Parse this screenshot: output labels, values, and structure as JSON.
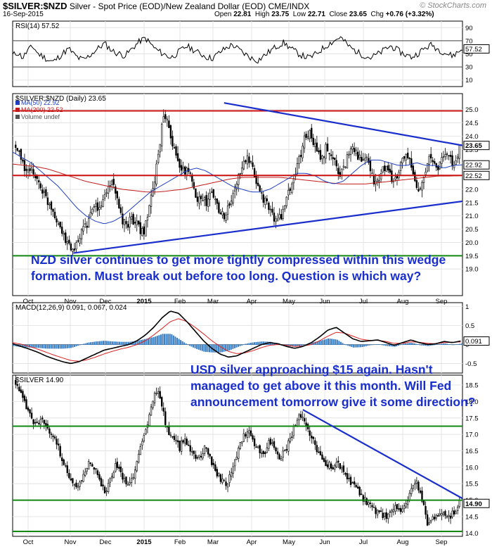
{
  "header": {
    "symbol": "$SILVER:$NZD",
    "description": "Silver - Spot Price (EOD)/New Zealand Dollar (EOD)",
    "exchange": "CME/INDX",
    "date": "16-Sep-2015",
    "open_label": "Open",
    "open": "22.81",
    "high_label": "High",
    "high": "23.75",
    "low_label": "Low",
    "low": "22.71",
    "close_label": "Close",
    "close": "23.65",
    "chg_label": "Chg",
    "chg": "+0.76 (+3.32%)",
    "brand": "© StockCharts.com"
  },
  "annotations": {
    "nzd_note": "NZD silver continues to get more tightly compressed within this wedge formation. Must break out before too long. Question is which way?",
    "usd_note": "USD silver approaching $15 again. Hasn't managed to get above it this month. Will Fed announcement tomorrow give it some direction?"
  },
  "colors": {
    "accent_blue": "#1a2ecc",
    "trend_red": "#cc1111",
    "support_green": "#118811",
    "ma50": "#1f3fbf",
    "ma200": "#c21b1b",
    "macd_signal": "#d22",
    "hist": "#3a7fc4"
  },
  "chart_data": [
    {
      "type": "line",
      "panel": "RSI",
      "title": "RSI(14) 57.52",
      "yticks": [
        10,
        30,
        50,
        70,
        90
      ],
      "ylim": [
        0,
        100
      ],
      "last_value": "57.52",
      "values": [
        48,
        52,
        44,
        56,
        61,
        50,
        46,
        40,
        38,
        45,
        52,
        58,
        49,
        43,
        41,
        47,
        54,
        60,
        66,
        58,
        52,
        50,
        47,
        55,
        63,
        70,
        74,
        65,
        57,
        52,
        48,
        44,
        50,
        56,
        62,
        58,
        53,
        49,
        45,
        43,
        49,
        55,
        60,
        64,
        58,
        52,
        47,
        42,
        40,
        46,
        52,
        58,
        63,
        67,
        61,
        55,
        50,
        46,
        44,
        48,
        54,
        60,
        66,
        70,
        76,
        68,
        60,
        55,
        50,
        47,
        44,
        48,
        52,
        58,
        62,
        57,
        52,
        48,
        45,
        49,
        55,
        60,
        64,
        58,
        54,
        50,
        47,
        52,
        57.52
      ]
    },
    {
      "type": "candlestick",
      "panel": "$SILVER:$NZD",
      "title": "$SILVER:$NZD (Daily) 23.65",
      "legend": [
        "MA(50) 22.92",
        "MA(200) 22.52",
        "Volume undef"
      ],
      "yticks": [
        19.0,
        19.5,
        20.0,
        20.5,
        21.0,
        21.5,
        22.0,
        22.5,
        23.0,
        23.5,
        24.0,
        24.5,
        25.0
      ],
      "ylim": [
        18.0,
        25.6
      ],
      "price_labels": [
        "23.65",
        "22.92",
        "22.52"
      ],
      "price_label_values": [
        23.65,
        22.92,
        22.52
      ],
      "x_months": [
        "Oct",
        "Nov",
        "Dec",
        "2015",
        "Feb",
        "Mar",
        "Apr",
        "May",
        "Jun",
        "Jul",
        "Aug",
        "Sep"
      ],
      "horizontal_lines": [
        24.95,
        22.52,
        19.5
      ],
      "horizontal_line_colors": [
        "#cc1111",
        "#cc1111",
        "#118811"
      ],
      "trendlines": [
        {
          "from": [
            0.47,
            25.25
          ],
          "to": [
            1.0,
            23.65
          ]
        },
        {
          "from": [
            0.135,
            19.6
          ],
          "to": [
            1.0,
            21.55
          ]
        }
      ],
      "close_path": [
        23.6,
        23.2,
        22.8,
        22.6,
        22.7,
        22.3,
        22.0,
        21.6,
        21.4,
        21.0,
        20.6,
        20.1,
        19.9,
        19.7,
        19.95,
        20.4,
        20.7,
        21.0,
        21.4,
        21.2,
        21.8,
        22.1,
        22.4,
        21.4,
        20.8,
        20.6,
        21.0,
        20.7,
        20.5,
        20.4,
        21.2,
        22.0,
        23.2,
        24.4,
        24.9,
        24.0,
        23.3,
        22.9,
        22.6,
        22.8,
        22.0,
        21.7,
        21.8,
        21.4,
        21.9,
        21.6,
        21.2,
        21.0,
        21.3,
        21.8,
        22.4,
        22.8,
        23.2,
        22.9,
        22.4,
        22.0,
        21.6,
        21.3,
        21.0,
        20.8,
        21.1,
        21.6,
        22.1,
        22.6,
        23.2,
        23.9,
        24.2,
        23.8,
        23.4,
        23.1,
        23.6,
        23.3,
        23.0,
        22.6,
        22.8,
        23.4,
        23.7,
        23.3,
        23.0,
        23.2,
        22.6,
        22.2,
        22.4,
        22.9,
        22.6,
        22.3,
        22.5,
        23.0,
        23.4,
        22.9,
        22.2,
        21.9,
        22.6,
        23.2,
        23.0,
        22.8,
        23.1,
        23.4,
        23.2,
        22.8,
        23.65
      ],
      "ma50_path": [
        23.4,
        23.2,
        23.0,
        22.7,
        22.4,
        22.1,
        21.7,
        21.3,
        21.0,
        20.8,
        20.7,
        20.8,
        21.0,
        21.3,
        21.6,
        21.9,
        22.1,
        22.3,
        22.5,
        22.7,
        22.8,
        22.7,
        22.5,
        22.3,
        22.1,
        22.0,
        21.9,
        21.9,
        22.0,
        22.2,
        22.4,
        22.6,
        22.6,
        22.5,
        22.3,
        22.2,
        22.3,
        22.6,
        22.9,
        23.1,
        23.1,
        23.0,
        22.9,
        22.9,
        23.0,
        22.9,
        22.9,
        22.8,
        22.9,
        22.92
      ],
      "ma200_path": [
        22.95,
        22.9,
        22.85,
        22.75,
        22.6,
        22.45,
        22.3,
        22.2,
        22.1,
        22.0,
        21.95,
        21.9,
        21.9,
        21.95,
        22.0,
        22.1,
        22.2,
        22.3,
        22.4,
        22.45,
        22.45,
        22.45,
        22.45,
        22.4,
        22.35,
        22.3,
        22.25,
        22.2,
        22.2,
        22.2,
        22.25,
        22.3,
        22.35,
        22.4,
        22.45,
        22.5,
        22.5,
        22.52
      ]
    },
    {
      "type": "line",
      "panel": "MACD",
      "title": "MACD(12,26,9) 0.091, 0.067, 0.024",
      "legend": [
        "MACD(12,26,9) 0.091",
        "0.067",
        "0.024"
      ],
      "yticks": [
        -0.5,
        0.0,
        0.5,
        1.0
      ],
      "ylim": [
        -0.75,
        1.1
      ],
      "last_value": "0.091",
      "macd": [
        0.02,
        -0.05,
        -0.12,
        -0.2,
        -0.3,
        -0.38,
        -0.45,
        -0.5,
        -0.45,
        -0.35,
        -0.25,
        -0.15,
        -0.1,
        -0.05,
        0.0,
        0.1,
        0.25,
        0.45,
        0.7,
        0.88,
        0.82,
        0.6,
        0.35,
        0.1,
        -0.1,
        -0.25,
        -0.33,
        -0.3,
        -0.2,
        -0.1,
        0.0,
        0.05,
        0.02,
        -0.05,
        -0.1,
        -0.05,
        0.05,
        0.2,
        0.38,
        0.45,
        0.3,
        0.15,
        0.08,
        0.1,
        0.12,
        0.05,
        -0.02,
        0.05,
        0.12,
        0.05,
        0.0,
        0.02,
        0.08,
        0.05,
        0.091
      ],
      "signal": [
        0.05,
        0.01,
        -0.05,
        -0.12,
        -0.2,
        -0.28,
        -0.35,
        -0.42,
        -0.44,
        -0.4,
        -0.33,
        -0.25,
        -0.18,
        -0.12,
        -0.07,
        0.0,
        0.1,
        0.25,
        0.42,
        0.6,
        0.68,
        0.6,
        0.45,
        0.28,
        0.1,
        -0.05,
        -0.18,
        -0.24,
        -0.22,
        -0.16,
        -0.08,
        -0.02,
        0.0,
        -0.02,
        -0.05,
        -0.04,
        0.0,
        0.1,
        0.22,
        0.32,
        0.3,
        0.22,
        0.14,
        0.11,
        0.11,
        0.08,
        0.03,
        0.03,
        0.07,
        0.06,
        0.03,
        0.02,
        0.05,
        0.06,
        0.067
      ]
    },
    {
      "type": "candlestick",
      "panel": "$SILVER",
      "title": "$SILVER 14.90",
      "yticks": [
        14.0,
        14.5,
        15.0,
        15.5,
        16.0,
        16.5,
        17.0,
        17.5,
        18.0,
        18.5
      ],
      "ylim": [
        13.9,
        18.8
      ],
      "price_labels": [
        "14.90"
      ],
      "price_label_values": [
        14.9
      ],
      "x_months": [
        "Oct",
        "Nov",
        "Dec",
        "2015",
        "Feb",
        "Mar",
        "Apr",
        "May",
        "Jun",
        "Jul",
        "Aug",
        "Sep"
      ],
      "horizontal_lines": [
        17.25,
        15.0,
        14.05
      ],
      "horizontal_line_colors": [
        "#118811",
        "#118811",
        "#118811"
      ],
      "trendlines": [
        {
          "from": [
            0.645,
            17.75
          ],
          "to": [
            1.0,
            15.05
          ]
        }
      ],
      "close_path": [
        18.6,
        18.2,
        17.8,
        17.5,
        17.3,
        17.4,
        17.2,
        17.0,
        16.6,
        16.2,
        15.7,
        15.4,
        15.5,
        15.8,
        16.2,
        16.0,
        15.6,
        15.2,
        15.7,
        16.1,
        15.8,
        15.4,
        15.6,
        16.2,
        16.8,
        17.3,
        18.1,
        18.4,
        17.6,
        17.0,
        16.9,
        16.6,
        16.9,
        16.6,
        16.2,
        16.4,
        16.6,
        16.2,
        15.8,
        15.6,
        15.5,
        16.0,
        16.5,
        16.9,
        17.1,
        16.8,
        16.5,
        16.4,
        16.8,
        16.6,
        16.3,
        16.5,
        16.9,
        17.3,
        17.6,
        17.3,
        16.9,
        16.5,
        16.2,
        16.1,
        16.0,
        16.1,
        15.9,
        15.6,
        15.5,
        15.2,
        15.0,
        14.8,
        14.7,
        14.6,
        14.5,
        14.7,
        14.8,
        14.6,
        14.9,
        15.4,
        15.5,
        14.9,
        14.3,
        14.4,
        14.6,
        14.7,
        14.5,
        14.6,
        14.9
      ]
    }
  ]
}
